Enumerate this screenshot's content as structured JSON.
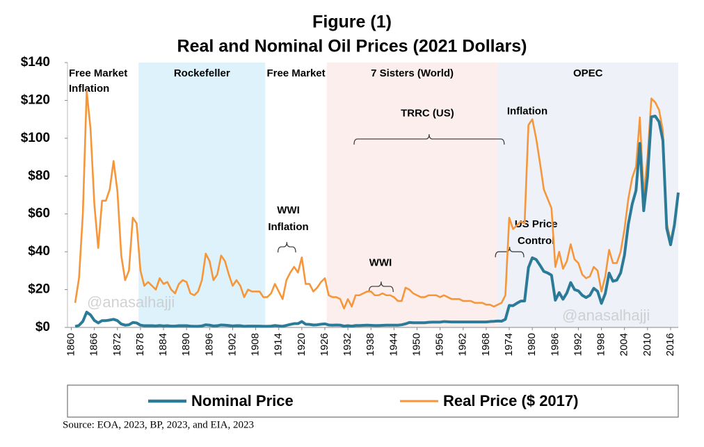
{
  "chart_data": {
    "type": "line",
    "title": [
      "Figure (1)",
      "Real and Nominal Oil Prices (2021 Dollars)"
    ],
    "source": "Source:  EOA, 2023,  BP, 2023, and EIA, 2023",
    "watermark": "@anasalhajji",
    "xlim": [
      1859,
      2018
    ],
    "xticks": [
      1860,
      1866,
      1872,
      1878,
      1884,
      1890,
      1896,
      1902,
      1908,
      1914,
      1920,
      1926,
      1932,
      1938,
      1944,
      1950,
      1956,
      1962,
      1968,
      1974,
      1980,
      1986,
      1992,
      1998,
      2004,
      2010,
      2016
    ],
    "ylim": [
      0,
      140
    ],
    "yticks": [
      {
        "value": 0,
        "label": "$0"
      },
      {
        "value": 20,
        "label": "$20"
      },
      {
        "value": 40,
        "label": "$40"
      },
      {
        "value": 60,
        "label": "$60"
      },
      {
        "value": 80,
        "label": "$80"
      },
      {
        "value": 100,
        "label": "$100"
      },
      {
        "value": 120,
        "label": "$120"
      },
      {
        "value": 140,
        "label": "$140"
      }
    ],
    "x": [
      1861,
      1862,
      1863,
      1864,
      1865,
      1866,
      1867,
      1868,
      1869,
      1870,
      1871,
      1872,
      1873,
      1874,
      1875,
      1876,
      1877,
      1878,
      1879,
      1880,
      1881,
      1882,
      1883,
      1884,
      1885,
      1886,
      1887,
      1888,
      1889,
      1890,
      1891,
      1892,
      1893,
      1894,
      1895,
      1896,
      1897,
      1898,
      1899,
      1900,
      1901,
      1902,
      1903,
      1904,
      1905,
      1906,
      1907,
      1908,
      1909,
      1910,
      1911,
      1912,
      1913,
      1914,
      1915,
      1916,
      1917,
      1918,
      1919,
      1920,
      1921,
      1922,
      1923,
      1924,
      1925,
      1926,
      1927,
      1928,
      1929,
      1930,
      1931,
      1932,
      1933,
      1934,
      1935,
      1936,
      1937,
      1938,
      1939,
      1940,
      1941,
      1942,
      1943,
      1944,
      1945,
      1946,
      1947,
      1948,
      1949,
      1950,
      1951,
      1952,
      1953,
      1954,
      1955,
      1956,
      1957,
      1958,
      1959,
      1960,
      1961,
      1962,
      1963,
      1964,
      1965,
      1966,
      1967,
      1968,
      1969,
      1970,
      1971,
      1972,
      1973,
      1974,
      1975,
      1976,
      1977,
      1978,
      1979,
      1980,
      1981,
      1982,
      1983,
      1984,
      1985,
      1986,
      1987,
      1988,
      1989,
      1990,
      1991,
      1992,
      1993,
      1994,
      1995,
      1996,
      1997,
      1998,
      1999,
      2000,
      2001,
      2002,
      2003,
      2004,
      2005,
      2006,
      2007,
      2008,
      2009,
      2010,
      2011,
      2012,
      2013,
      2014,
      2015,
      2016,
      2017,
      2018
    ],
    "series": [
      {
        "name": "Nominal Price",
        "color": "#2b7a98",
        "values": [
          0.5,
          1.1,
          3.2,
          8.1,
          6.6,
          3.7,
          2.4,
          3.6,
          3.6,
          3.9,
          4.3,
          3.6,
          1.8,
          1.2,
          1.4,
          2.6,
          2.4,
          1.2,
          0.9,
          0.9,
          0.9,
          0.8,
          1.0,
          0.8,
          0.9,
          0.7,
          0.7,
          0.9,
          0.9,
          0.9,
          0.7,
          0.6,
          0.6,
          0.8,
          1.4,
          1.2,
          0.8,
          0.9,
          1.3,
          1.2,
          1.0,
          0.8,
          0.9,
          0.9,
          0.6,
          0.7,
          0.7,
          0.7,
          0.7,
          0.6,
          0.6,
          0.7,
          1.0,
          0.8,
          0.6,
          1.1,
          1.6,
          2.0,
          2.0,
          3.1,
          1.7,
          1.6,
          1.3,
          1.4,
          1.7,
          1.9,
          1.3,
          1.2,
          1.3,
          1.2,
          0.7,
          0.9,
          0.7,
          1.0,
          1.0,
          1.1,
          1.2,
          1.1,
          1.0,
          1.0,
          1.1,
          1.2,
          1.2,
          1.2,
          1.2,
          1.4,
          1.9,
          2.6,
          2.5,
          2.5,
          2.5,
          2.5,
          2.7,
          2.8,
          2.8,
          2.8,
          3.1,
          3.0,
          2.9,
          2.9,
          2.9,
          2.9,
          2.9,
          2.9,
          2.9,
          2.9,
          2.9,
          2.9,
          3.1,
          3.2,
          3.4,
          3.3,
          4.3,
          11.6,
          11.5,
          12.8,
          13.9,
          14.0,
          31.6,
          36.8,
          35.9,
          32.9,
          29.6,
          28.8,
          27.6,
          14.4,
          18.4,
          14.9,
          18.2,
          23.7,
          20.0,
          19.3,
          17.0,
          15.8,
          17.0,
          20.7,
          19.1,
          12.7,
          17.9,
          28.7,
          24.4,
          25.0,
          28.8,
          38.3,
          54.5,
          65.1,
          72.4,
          97.3,
          61.7,
          79.6,
          111.3,
          111.7,
          108.7,
          98.9,
          52.4,
          43.7,
          54.2,
          71.3
        ]
      },
      {
        "name": "Real Price ($ 2017)",
        "color": "#f5963a",
        "values": [
          13,
          26,
          60,
          125,
          105,
          65,
          42,
          67,
          67,
          73,
          88,
          72,
          38,
          25,
          30,
          58,
          55,
          30,
          22,
          24,
          22,
          20,
          26,
          23,
          24,
          20,
          18,
          23,
          25,
          24,
          18,
          17,
          19,
          25,
          39,
          35,
          25,
          28,
          38,
          35,
          28,
          22,
          25,
          22,
          16,
          20,
          19,
          19,
          19,
          16,
          16,
          18,
          23,
          19,
          15,
          25,
          29,
          32,
          29,
          37,
          23,
          23,
          19,
          21,
          24,
          26,
          17,
          16,
          16,
          15,
          10,
          15,
          11,
          17,
          17,
          18,
          19,
          19,
          17,
          17,
          18,
          17,
          17,
          16,
          14,
          14,
          21,
          20,
          18,
          17,
          16,
          16,
          17,
          17,
          17,
          16,
          17,
          16,
          15,
          15,
          15,
          14,
          14,
          14,
          13,
          13,
          13,
          12,
          12,
          11,
          12,
          13,
          17,
          58,
          52,
          54,
          56,
          55,
          107,
          110,
          100,
          87,
          73,
          68,
          63,
          32,
          40,
          31,
          35,
          44,
          36,
          34,
          28,
          26,
          27,
          32,
          30,
          19,
          27,
          41,
          34,
          34,
          40,
          52,
          68,
          79,
          85,
          111,
          70,
          90,
          121,
          119,
          115,
          104,
          55,
          46,
          53,
          70
        ]
      }
    ],
    "periods": [
      {
        "label": [
          "Free Market",
          "Inflation"
        ],
        "start": 1859,
        "end": 1877.5,
        "color": "#ffffff"
      },
      {
        "label": [
          "Rockefeller"
        ],
        "start": 1877.5,
        "end": 1910.5,
        "color": "#ddf2fb"
      },
      {
        "label": [
          "Free Market"
        ],
        "start": 1910.5,
        "end": 1926.5,
        "color": "#ffffff"
      },
      {
        "label": [
          "7 Sisters (World)"
        ],
        "start": 1926.5,
        "end": 1971,
        "color": "#fdeeee"
      },
      {
        "label": [
          "OPEC"
        ],
        "start": 1971,
        "end": 2018,
        "color": "#eef1f8"
      }
    ],
    "annotations": [
      {
        "text": [
          "TRRC (US)"
        ],
        "x": 1952.7,
        "y": 113,
        "brace": [
          1933.6,
          1972.7,
          99.6
        ]
      },
      {
        "text": [
          "WWI"
        ],
        "x": 1940.5,
        "y": 34,
        "brace": [
          1937.5,
          1943.8,
          21.7
        ]
      },
      {
        "text": [
          "WWI",
          "Inflation"
        ],
        "x": 1916.5,
        "y": 61.7,
        "brace": [
          1913.8,
          1918.4,
          42.6
        ]
      },
      {
        "text": [
          "US Price",
          "Control"
        ],
        "x": 1981,
        "y": 54.4,
        "brace": [
          1970.4,
          1977.8,
          40
        ]
      },
      {
        "text": [
          "Inflation"
        ],
        "x": 1978.7,
        "y": 114
      }
    ]
  }
}
